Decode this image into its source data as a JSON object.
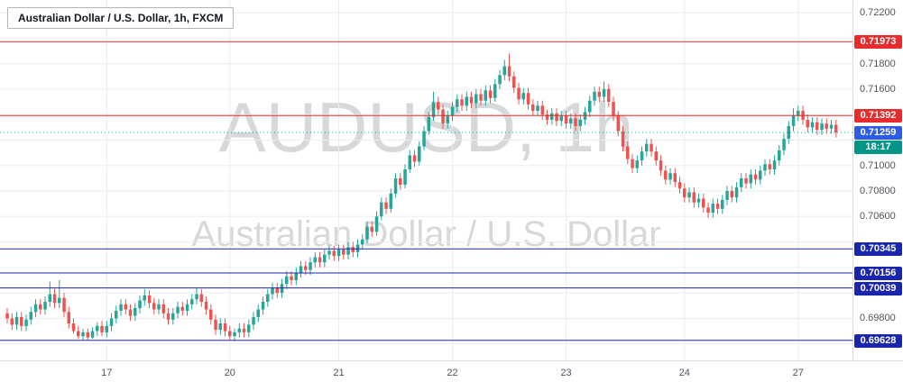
{
  "legend": {
    "text": "Australian Dollar / U.S. Dollar, 1h, FXCM"
  },
  "watermark": {
    "line1": "AUDUSD, 1h",
    "line2": "Australian Dollar / U.S. Dollar"
  },
  "colors": {
    "background": "#ffffff",
    "grid": "#ebedf0",
    "up": "#26a69a",
    "down": "#ef5350",
    "axis_text": "#50535e",
    "alert_red": "#ea2b2b",
    "line_navy": "#1a25ad",
    "last_price_badge": "#2c5ce6",
    "countdown_badge": "#009688"
  },
  "chart_data": {
    "type": "candlestick",
    "symbol": "AUDUSD",
    "symbol_name": "Australian Dollar / U.S. Dollar",
    "interval": "1h",
    "exchange": "FXCM",
    "y_axis": {
      "price_top": 0.723,
      "price_bottom": 0.6947,
      "grid_max": 0.722,
      "grid_min": 0.696,
      "grid_step": 0.002,
      "labels": [
        {
          "price": 0.722,
          "text": "0.72200"
        },
        {
          "price": 0.718,
          "text": "0.71800"
        },
        {
          "price": 0.716,
          "text": "0.71600"
        },
        {
          "price": 0.71,
          "text": "0.71000"
        },
        {
          "price": 0.708,
          "text": "0.70800"
        },
        {
          "price": 0.706,
          "text": "0.70600"
        },
        {
          "price": 0.698,
          "text": "0.69800"
        }
      ]
    },
    "x_axis": {
      "ticks": [
        {
          "index": 21,
          "label": "17"
        },
        {
          "index": 47,
          "label": "20"
        },
        {
          "index": 70,
          "label": "21"
        },
        {
          "index": 94,
          "label": "22"
        },
        {
          "index": 118,
          "label": "23"
        },
        {
          "index": 143,
          "label": "24"
        },
        {
          "index": 167,
          "label": "27"
        }
      ]
    },
    "levels": [
      {
        "price": 0.71973,
        "text": "0.71973",
        "color": "#ea2b2b"
      },
      {
        "price": 0.71392,
        "text": "0.71392",
        "color": "#ea2b2b"
      },
      {
        "price": 0.70345,
        "text": "0.70345",
        "color": "#1a25ad"
      },
      {
        "price": 0.70156,
        "text": "0.70156",
        "color": "#1a25ad"
      },
      {
        "price": 0.70039,
        "text": "0.70039",
        "color": "#1a25ad"
      },
      {
        "price": 0.69628,
        "text": "0.69628",
        "color": "#1a25ad"
      }
    ],
    "last_price": {
      "value": 0.71259,
      "text": "0.71259",
      "badge_color": "#2c5ce6",
      "line_color": "#26a69a",
      "countdown": "18:17",
      "countdown_color": "#009688"
    },
    "candles": [
      [
        0.6984,
        0.6988,
        0.6976,
        0.698
      ],
      [
        0.698,
        0.6984,
        0.6971,
        0.6975
      ],
      [
        0.6975,
        0.6985,
        0.6971,
        0.6981
      ],
      [
        0.6981,
        0.6985,
        0.697,
        0.6974
      ],
      [
        0.6974,
        0.6983,
        0.697,
        0.6979
      ],
      [
        0.6979,
        0.6989,
        0.6975,
        0.6985
      ],
      [
        0.6985,
        0.6995,
        0.6981,
        0.6991
      ],
      [
        0.6991,
        0.6995,
        0.6983,
        0.6987
      ],
      [
        0.6987,
        0.6997,
        0.6983,
        0.6993
      ],
      [
        0.6993,
        0.7009,
        0.6989,
        0.6999
      ],
      [
        0.6999,
        0.7003,
        0.6988,
        0.6992
      ],
      [
        0.6992,
        0.701,
        0.6988,
        0.6996
      ],
      [
        0.6996,
        0.7,
        0.6981,
        0.6985
      ],
      [
        0.6985,
        0.6989,
        0.6972,
        0.6976
      ],
      [
        0.6976,
        0.698,
        0.6968,
        0.697
      ],
      [
        0.697,
        0.6974,
        0.6964,
        0.6966
      ],
      [
        0.6966,
        0.6972,
        0.6963,
        0.6969
      ],
      [
        0.6969,
        0.6972,
        0.6963,
        0.6965
      ],
      [
        0.6965,
        0.6973,
        0.6964,
        0.697
      ],
      [
        0.697,
        0.6977,
        0.6966,
        0.6974
      ],
      [
        0.6974,
        0.6978,
        0.6966,
        0.6969
      ],
      [
        0.6969,
        0.6978,
        0.6965,
        0.6974
      ],
      [
        0.6974,
        0.6984,
        0.697,
        0.698
      ],
      [
        0.698,
        0.699,
        0.6976,
        0.6986
      ],
      [
        0.6986,
        0.6995,
        0.6982,
        0.6991
      ],
      [
        0.6991,
        0.6995,
        0.6983,
        0.6987
      ],
      [
        0.6987,
        0.6991,
        0.6978,
        0.6982
      ],
      [
        0.6982,
        0.6992,
        0.6978,
        0.6988
      ],
      [
        0.6988,
        0.6998,
        0.6984,
        0.6994
      ],
      [
        0.6994,
        0.7003,
        0.699,
        0.6998
      ],
      [
        0.6998,
        0.7002,
        0.6988,
        0.6992
      ],
      [
        0.6992,
        0.6996,
        0.6983,
        0.6987
      ],
      [
        0.6987,
        0.6995,
        0.6983,
        0.6991
      ],
      [
        0.6991,
        0.6995,
        0.698,
        0.6984
      ],
      [
        0.6984,
        0.6988,
        0.6975,
        0.6979
      ],
      [
        0.6979,
        0.6988,
        0.6975,
        0.6984
      ],
      [
        0.6984,
        0.6993,
        0.698,
        0.6989
      ],
      [
        0.6989,
        0.6993,
        0.6982,
        0.6986
      ],
      [
        0.6986,
        0.6995,
        0.6982,
        0.6991
      ],
      [
        0.6991,
        0.6999,
        0.6987,
        0.6995
      ],
      [
        0.6995,
        0.7004,
        0.6991,
        0.6999
      ],
      [
        0.6999,
        0.7003,
        0.6989,
        0.6993
      ],
      [
        0.6993,
        0.6997,
        0.6983,
        0.6987
      ],
      [
        0.6987,
        0.6991,
        0.6975,
        0.6979
      ],
      [
        0.6979,
        0.6983,
        0.6967,
        0.6971
      ],
      [
        0.6971,
        0.698,
        0.6967,
        0.6976
      ],
      [
        0.6976,
        0.698,
        0.6966,
        0.697
      ],
      [
        0.697,
        0.6974,
        0.6963,
        0.6966
      ],
      [
        0.6966,
        0.6972,
        0.6962,
        0.6969
      ],
      [
        0.6969,
        0.6976,
        0.6965,
        0.6972
      ],
      [
        0.6972,
        0.6976,
        0.6965,
        0.6969
      ],
      [
        0.6969,
        0.6979,
        0.6965,
        0.6975
      ],
      [
        0.6975,
        0.6985,
        0.6971,
        0.6981
      ],
      [
        0.6981,
        0.6991,
        0.6977,
        0.6987
      ],
      [
        0.6987,
        0.6997,
        0.6983,
        0.6993
      ],
      [
        0.6993,
        0.7003,
        0.6989,
        0.6999
      ],
      [
        0.6999,
        0.7008,
        0.6995,
        0.7004
      ],
      [
        0.7004,
        0.7008,
        0.6996,
        0.7
      ],
      [
        0.7,
        0.7011,
        0.6996,
        0.7007
      ],
      [
        0.7007,
        0.7017,
        0.7003,
        0.7013
      ],
      [
        0.7013,
        0.7017,
        0.7006,
        0.701
      ],
      [
        0.701,
        0.702,
        0.7006,
        0.7016
      ],
      [
        0.7016,
        0.7025,
        0.7012,
        0.7021
      ],
      [
        0.7021,
        0.7025,
        0.7014,
        0.7018
      ],
      [
        0.7018,
        0.7028,
        0.7014,
        0.7024
      ],
      [
        0.7024,
        0.7032,
        0.702,
        0.7028
      ],
      [
        0.7028,
        0.7032,
        0.702,
        0.7024
      ],
      [
        0.7024,
        0.7034,
        0.702,
        0.703
      ],
      [
        0.703,
        0.7037,
        0.7026,
        0.7033
      ],
      [
        0.7033,
        0.7037,
        0.7025,
        0.7029
      ],
      [
        0.7029,
        0.7038,
        0.7025,
        0.7034
      ],
      [
        0.7034,
        0.7038,
        0.7026,
        0.703
      ],
      [
        0.703,
        0.704,
        0.7026,
        0.7036
      ],
      [
        0.7036,
        0.704,
        0.7028,
        0.7032
      ],
      [
        0.7032,
        0.7042,
        0.7028,
        0.7038
      ],
      [
        0.7038,
        0.7046,
        0.7034,
        0.7042
      ],
      [
        0.7042,
        0.7056,
        0.7039,
        0.7052
      ],
      [
        0.7052,
        0.7056,
        0.7044,
        0.7048
      ],
      [
        0.7048,
        0.7064,
        0.7045,
        0.706
      ],
      [
        0.706,
        0.7075,
        0.7057,
        0.7071
      ],
      [
        0.7071,
        0.7075,
        0.7062,
        0.7066
      ],
      [
        0.7066,
        0.7082,
        0.7063,
        0.7078
      ],
      [
        0.7078,
        0.7094,
        0.7075,
        0.709
      ],
      [
        0.709,
        0.7094,
        0.7081,
        0.7085
      ],
      [
        0.7085,
        0.7101,
        0.7082,
        0.7097
      ],
      [
        0.7097,
        0.7112,
        0.7094,
        0.7108
      ],
      [
        0.7108,
        0.7112,
        0.7099,
        0.7103
      ],
      [
        0.7103,
        0.7119,
        0.71,
        0.7115
      ],
      [
        0.7115,
        0.7131,
        0.7112,
        0.7127
      ],
      [
        0.7127,
        0.7142,
        0.7124,
        0.7138
      ],
      [
        0.7138,
        0.7158,
        0.7135,
        0.715
      ],
      [
        0.715,
        0.7154,
        0.714,
        0.7144
      ],
      [
        0.7144,
        0.7148,
        0.7129,
        0.7133
      ],
      [
        0.7133,
        0.7143,
        0.7129,
        0.7139
      ],
      [
        0.7139,
        0.715,
        0.7135,
        0.7146
      ],
      [
        0.7146,
        0.7156,
        0.7142,
        0.7152
      ],
      [
        0.7152,
        0.7156,
        0.7143,
        0.7147
      ],
      [
        0.7147,
        0.7158,
        0.7143,
        0.7154
      ],
      [
        0.7154,
        0.7158,
        0.7145,
        0.7149
      ],
      [
        0.7149,
        0.716,
        0.7145,
        0.7156
      ],
      [
        0.7156,
        0.716,
        0.7147,
        0.7151
      ],
      [
        0.7151,
        0.7163,
        0.7147,
        0.7159
      ],
      [
        0.7159,
        0.7163,
        0.7149,
        0.7153
      ],
      [
        0.7153,
        0.7168,
        0.715,
        0.7164
      ],
      [
        0.7164,
        0.7175,
        0.716,
        0.7171
      ],
      [
        0.7171,
        0.7183,
        0.7167,
        0.7178
      ],
      [
        0.7178,
        0.7188,
        0.7166,
        0.717
      ],
      [
        0.717,
        0.7174,
        0.7157,
        0.7161
      ],
      [
        0.7161,
        0.7165,
        0.7148,
        0.7152
      ],
      [
        0.7152,
        0.7161,
        0.7148,
        0.7157
      ],
      [
        0.7157,
        0.7161,
        0.7144,
        0.7148
      ],
      [
        0.7148,
        0.7152,
        0.7139,
        0.7143
      ],
      [
        0.7143,
        0.7151,
        0.7139,
        0.7147
      ],
      [
        0.7147,
        0.7151,
        0.7136,
        0.714
      ],
      [
        0.714,
        0.7144,
        0.7132,
        0.7136
      ],
      [
        0.7136,
        0.7145,
        0.7132,
        0.7141
      ],
      [
        0.7141,
        0.7145,
        0.7131,
        0.7135
      ],
      [
        0.7135,
        0.7143,
        0.7131,
        0.7139
      ],
      [
        0.7139,
        0.7143,
        0.7129,
        0.7133
      ],
      [
        0.7133,
        0.7141,
        0.7129,
        0.7137
      ],
      [
        0.7137,
        0.7141,
        0.7127,
        0.7131
      ],
      [
        0.7131,
        0.714,
        0.7127,
        0.7136
      ],
      [
        0.7136,
        0.7146,
        0.7132,
        0.7142
      ],
      [
        0.7142,
        0.7155,
        0.7138,
        0.7151
      ],
      [
        0.7151,
        0.7162,
        0.7147,
        0.7158
      ],
      [
        0.7158,
        0.7162,
        0.715,
        0.7154
      ],
      [
        0.7154,
        0.7166,
        0.715,
        0.716
      ],
      [
        0.716,
        0.7164,
        0.7146,
        0.715
      ],
      [
        0.715,
        0.7154,
        0.7135,
        0.7139
      ],
      [
        0.7139,
        0.7143,
        0.7123,
        0.7127
      ],
      [
        0.7127,
        0.7131,
        0.7111,
        0.7115
      ],
      [
        0.7115,
        0.7119,
        0.7101,
        0.7105
      ],
      [
        0.7105,
        0.7109,
        0.7094,
        0.7098
      ],
      [
        0.7098,
        0.7108,
        0.7094,
        0.7104
      ],
      [
        0.7104,
        0.7115,
        0.71,
        0.7111
      ],
      [
        0.7111,
        0.7121,
        0.7107,
        0.7117
      ],
      [
        0.7117,
        0.7121,
        0.7107,
        0.7111
      ],
      [
        0.7111,
        0.7115,
        0.71,
        0.7104
      ],
      [
        0.7104,
        0.7108,
        0.7092,
        0.7096
      ],
      [
        0.7096,
        0.71,
        0.7085,
        0.7089
      ],
      [
        0.7089,
        0.7098,
        0.7085,
        0.7094
      ],
      [
        0.7094,
        0.7098,
        0.7083,
        0.7087
      ],
      [
        0.7087,
        0.7091,
        0.7078,
        0.7082
      ],
      [
        0.7082,
        0.7086,
        0.7071,
        0.7075
      ],
      [
        0.7075,
        0.7083,
        0.7071,
        0.7079
      ],
      [
        0.7079,
        0.7083,
        0.7067,
        0.7071
      ],
      [
        0.7071,
        0.7078,
        0.7067,
        0.7074
      ],
      [
        0.7074,
        0.7078,
        0.7063,
        0.7067
      ],
      [
        0.7067,
        0.7071,
        0.7059,
        0.7063
      ],
      [
        0.7063,
        0.7074,
        0.7059,
        0.707
      ],
      [
        0.707,
        0.7074,
        0.7062,
        0.7066
      ],
      [
        0.7066,
        0.7077,
        0.7062,
        0.7073
      ],
      [
        0.7073,
        0.7084,
        0.7069,
        0.708
      ],
      [
        0.708,
        0.7084,
        0.7071,
        0.7075
      ],
      [
        0.7075,
        0.7087,
        0.7071,
        0.7083
      ],
      [
        0.7083,
        0.7094,
        0.7079,
        0.709
      ],
      [
        0.709,
        0.7094,
        0.7082,
        0.7086
      ],
      [
        0.7086,
        0.7097,
        0.7082,
        0.7093
      ],
      [
        0.7093,
        0.7097,
        0.7085,
        0.7089
      ],
      [
        0.7089,
        0.71,
        0.7085,
        0.7096
      ],
      [
        0.7096,
        0.7105,
        0.7092,
        0.7101
      ],
      [
        0.7101,
        0.7105,
        0.7093,
        0.7097
      ],
      [
        0.7097,
        0.7108,
        0.7093,
        0.7104
      ],
      [
        0.7104,
        0.7116,
        0.71,
        0.7112
      ],
      [
        0.7112,
        0.7125,
        0.7108,
        0.7121
      ],
      [
        0.7121,
        0.7135,
        0.7117,
        0.7131
      ],
      [
        0.7131,
        0.7145,
        0.7127,
        0.7139
      ],
      [
        0.7139,
        0.7147,
        0.7135,
        0.7143
      ],
      [
        0.7143,
        0.7147,
        0.7132,
        0.7136
      ],
      [
        0.7136,
        0.714,
        0.7126,
        0.713
      ],
      [
        0.713,
        0.7138,
        0.7126,
        0.7134
      ],
      [
        0.7134,
        0.7138,
        0.7124,
        0.7128
      ],
      [
        0.7128,
        0.7137,
        0.7124,
        0.7133
      ],
      [
        0.7133,
        0.7137,
        0.7125,
        0.7129
      ],
      [
        0.7129,
        0.7136,
        0.7125,
        0.7132
      ],
      [
        0.7132,
        0.7136,
        0.7122,
        0.71259
      ]
    ]
  }
}
